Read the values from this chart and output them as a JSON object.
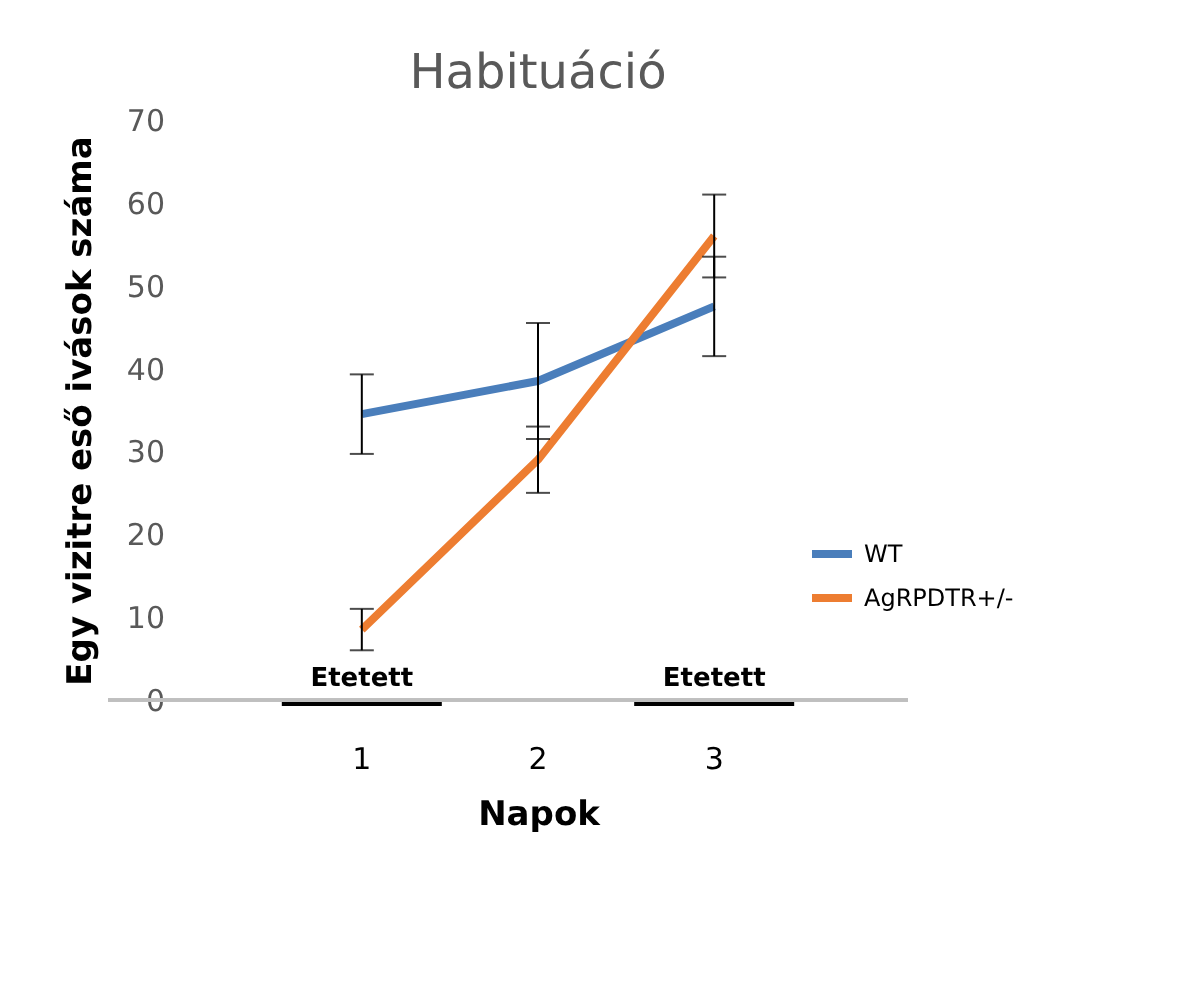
{
  "chart_data": {
    "type": "line",
    "title": "Habituáció",
    "xlabel": "Napok",
    "ylabel": "Egy vizitre eső ivások száma",
    "categories": [
      "1",
      "2",
      "3"
    ],
    "series": [
      {
        "name": "WT",
        "color": "#4a7ebb",
        "values": [
          34.5,
          38.5,
          47.5
        ],
        "errors": [
          4.8,
          7,
          6
        ]
      },
      {
        "name": "AgRPDTR+/-",
        "color": "#ed7d31",
        "values": [
          8.5,
          29,
          56
        ],
        "errors": [
          2.5,
          4,
          5
        ]
      }
    ],
    "ylim": [
      0,
      70
    ],
    "yticks": [
      0,
      10,
      20,
      30,
      40,
      50,
      60,
      70
    ],
    "grid": false,
    "legend": "bottom right",
    "marker": "none",
    "line_style": "solid",
    "annotations": [
      "Etetett",
      "Etetett"
    ]
  }
}
